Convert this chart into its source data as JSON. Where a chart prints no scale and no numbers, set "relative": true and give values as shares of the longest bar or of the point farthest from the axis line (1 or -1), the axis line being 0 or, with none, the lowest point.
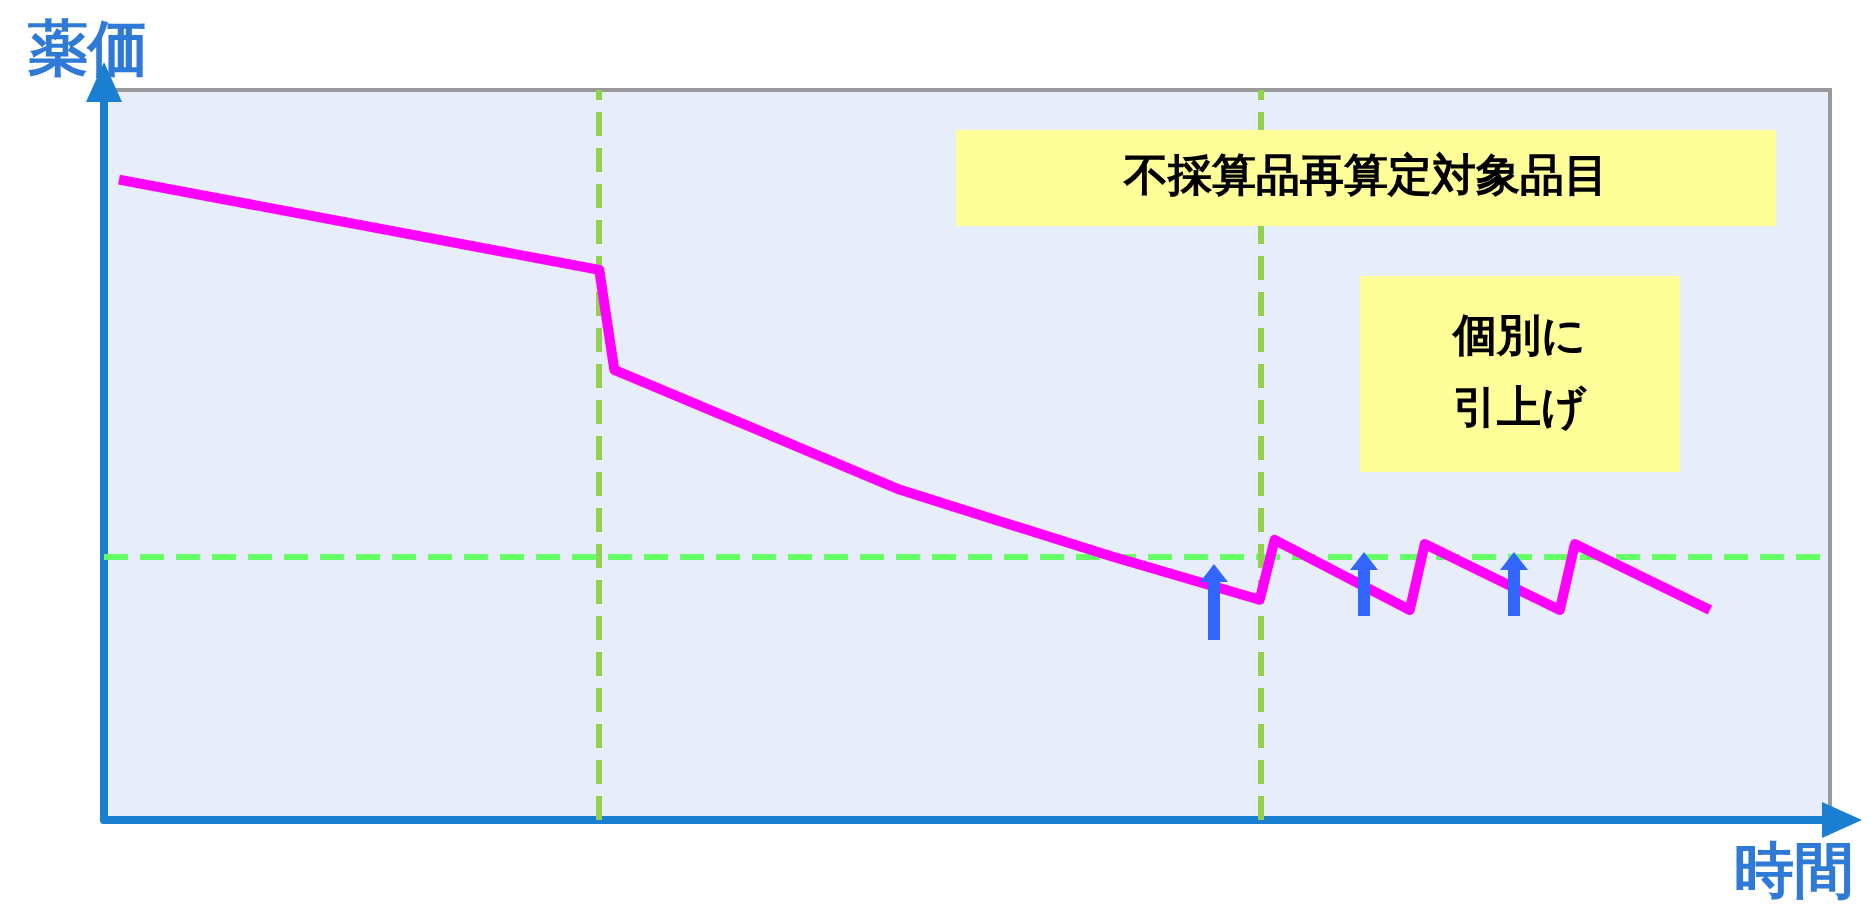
{
  "chart_data": {
    "type": "line",
    "relative": true,
    "xlabel": "時間",
    "ylabel": "薬価",
    "categories": [
      null,
      null,
      null,
      null,
      null,
      null,
      null,
      null,
      null,
      null,
      null,
      null,
      null,
      null,
      null,
      null,
      null,
      null,
      null,
      null,
      null,
      null,
      null,
      null,
      null,
      null,
      null,
      null,
      null,
      null,
      null,
      null,
      null,
      null,
      null,
      null,
      null,
      null,
      null,
      null,
      null,
      null,
      null,
      null,
      null,
      null,
      null,
      null,
      null,
      null,
      null,
      null,
      null,
      null,
      null,
      null,
      null,
      null,
      null,
      null,
      null,
      null,
      null,
      null,
      null,
      null,
      null,
      null,
      null,
      null,
      null,
      null,
      null,
      null,
      null,
      null,
      null,
      null,
      null,
      null,
      null,
      null,
      null,
      null,
      null,
      null,
      null,
      null,
      null,
      null,
      null,
      null,
      null,
      null,
      null,
      null,
      null,
      null,
      null,
      null,
      null,
      null,
      null,
      null,
      null,
      null,
      null,
      null,
      null,
      null,
      null,
      null,
      null,
      null,
      null,
      null
    ],
    "series": [
      {
        "color": "#ff00ff",
        "values": [
          null,
          1.0,
          null,
          null,
          null,
          null,
          null,
          null,
          null,
          null,
          null,
          null,
          null,
          null,
          null,
          null,
          null,
          null,
          null,
          null,
          null,
          null,
          null,
          null,
          null,
          null,
          null,
          null,
          null,
          null,
          null,
          null,
          null,
          0.859,
          0.703,
          null,
          null,
          null,
          null,
          null,
          null,
          null,
          null,
          null,
          null,
          null,
          null,
          null,
          null,
          null,
          null,
          null,
          null,
          0.516,
          null,
          null,
          null,
          null,
          null,
          null,
          null,
          null,
          null,
          null,
          null,
          null,
          null,
          0.4125,
          null,
          null,
          null,
          null,
          null,
          null,
          null,
          null,
          null,
          0.344,
          0.4375,
          null,
          null,
          null,
          null,
          null,
          null,
          null,
          null,
          0.328,
          0.431,
          null,
          null,
          null,
          null,
          null,
          null,
          null,
          null,
          0.328,
          0.431,
          null,
          null,
          null,
          null,
          null,
          null,
          null,
          null,
          0.328,
          null,
          null,
          null,
          null,
          null,
          null,
          null,
          null
        ]
      }
    ],
    "ref_lines": [
      {
        "axis": "y",
        "value": 0.41,
        "color": "#66ff66",
        "line_style": "dashed"
      }
    ],
    "annotations": [
      "不採算品再算定対象品目",
      "個別に引上げ"
    ],
    "grid": false,
    "line_style": "solid"
  }
}
